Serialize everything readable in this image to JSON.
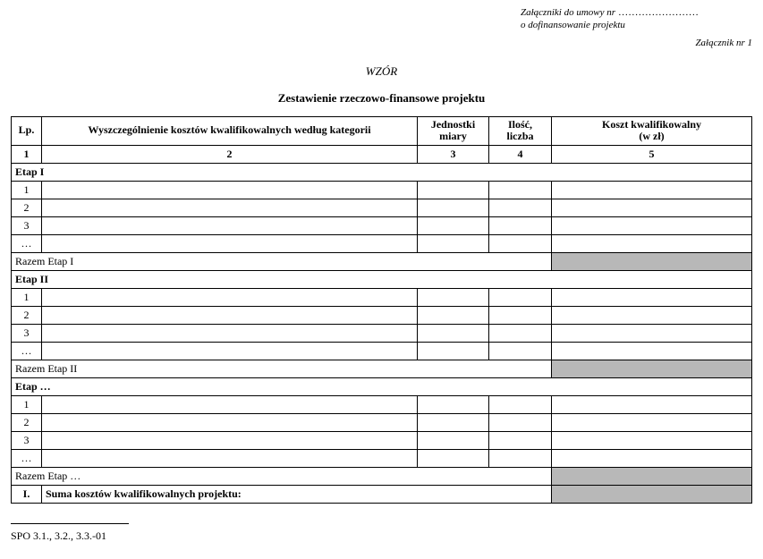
{
  "header": {
    "line1_prefix": "Załączniki do umowy nr",
    "line1_dots": " ........................",
    "line2": "o dofinansowanie projektu",
    "attachment_no": "Załącznik nr 1"
  },
  "wzor": "WZÓR",
  "title": "Zestawienie rzeczowo-finansowe projektu",
  "columns": {
    "lp": "Lp.",
    "desc": "Wyszczególnienie kosztów kwalifikowalnych według kategorii",
    "unit_l1": "Jednostki",
    "unit_l2": "miary",
    "qty_l1": "Ilość,",
    "qty_l2": "liczba",
    "cost_l1": "Koszt kwalifikowalny",
    "cost_l2": "(w zł)"
  },
  "colnums": {
    "c1": "1",
    "c2": "2",
    "c3": "3",
    "c4": "4",
    "c5": "5"
  },
  "stages": [
    {
      "name": "Etap I",
      "rows": [
        "1",
        "2",
        "3",
        "…"
      ],
      "razem": "Razem Etap I"
    },
    {
      "name": "Etap II",
      "rows": [
        "1",
        "2",
        "3",
        "…"
      ],
      "razem": "Razem Etap II"
    },
    {
      "name": "Etap …",
      "rows": [
        "1",
        "2",
        "3",
        "…"
      ],
      "razem": "Razem Etap …"
    }
  ],
  "sum_row": {
    "num": "I.",
    "label": "Suma kosztów kwalifikowalnych projektu:"
  },
  "footer_code": "SPO 3.1., 3.2., 3.3.-01",
  "style": {
    "shaded_bg": "#b8b8b8"
  }
}
